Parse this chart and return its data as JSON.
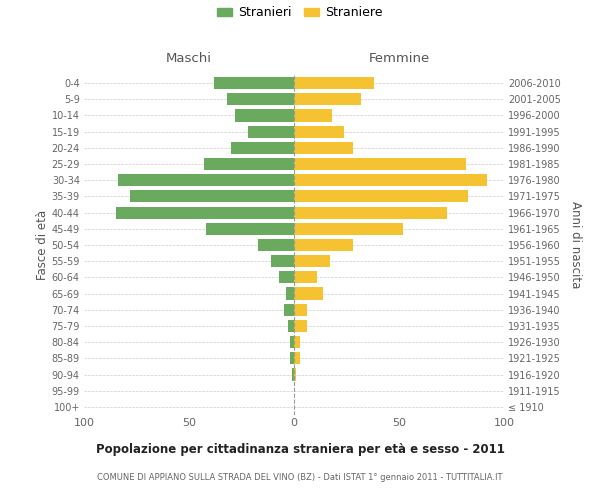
{
  "age_groups": [
    "100+",
    "95-99",
    "90-94",
    "85-89",
    "80-84",
    "75-79",
    "70-74",
    "65-69",
    "60-64",
    "55-59",
    "50-54",
    "45-49",
    "40-44",
    "35-39",
    "30-34",
    "25-29",
    "20-24",
    "15-19",
    "10-14",
    "5-9",
    "0-4"
  ],
  "birth_years": [
    "≤ 1910",
    "1911-1915",
    "1916-1920",
    "1921-1925",
    "1926-1930",
    "1931-1935",
    "1936-1940",
    "1941-1945",
    "1946-1950",
    "1951-1955",
    "1956-1960",
    "1961-1965",
    "1966-1970",
    "1971-1975",
    "1976-1980",
    "1981-1985",
    "1986-1990",
    "1991-1995",
    "1996-2000",
    "2001-2005",
    "2006-2010"
  ],
  "males": [
    0,
    0,
    1,
    2,
    2,
    3,
    5,
    4,
    7,
    11,
    17,
    42,
    85,
    78,
    84,
    43,
    30,
    22,
    28,
    32,
    38
  ],
  "females": [
    0,
    0,
    1,
    3,
    3,
    6,
    6,
    14,
    11,
    17,
    28,
    52,
    73,
    83,
    92,
    82,
    28,
    24,
    18,
    32,
    38
  ],
  "male_color": "#6aaa5f",
  "female_color": "#f5c231",
  "background_color": "#ffffff",
  "grid_color": "#cccccc",
  "title": "Popolazione per cittadinanza straniera per età e sesso - 2011",
  "subtitle": "COMUNE DI APPIANO SULLA STRADA DEL VINO (BZ) - Dati ISTAT 1° gennaio 2011 - TUTTITALIA.IT",
  "ylabel_left": "Fasce di età",
  "ylabel_right": "Anni di nascita",
  "legend_male": "Stranieri",
  "legend_female": "Straniere",
  "xlim": 100,
  "header_male": "Maschi",
  "header_female": "Femmine"
}
